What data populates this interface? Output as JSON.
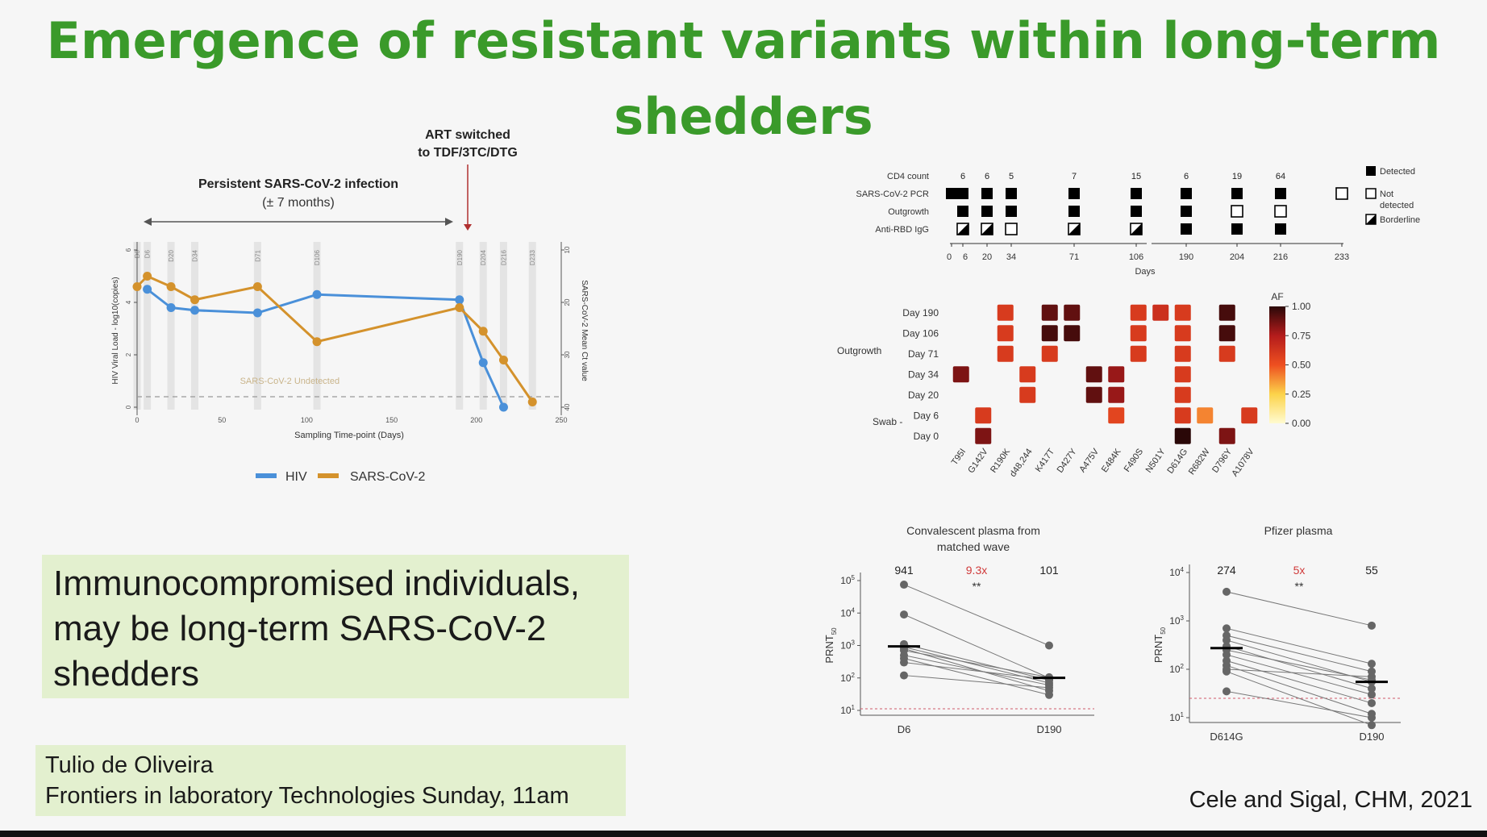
{
  "slide": {
    "title": "Emergence of resistant variants within long-term shedders",
    "title_lines": [
      "Emergence of resistant variants within long-term",
      "shedders"
    ],
    "main_box_lines": [
      "Immunocompromised individuals,",
      "may be long-term SARS-CoV-2",
      "shedders"
    ],
    "credit_lines": [
      "Tulio de Oliveira",
      "Frontiers in laboratory Technologies Sunday, 11am"
    ],
    "citation": "Cele and Sigal, CHM, 2021",
    "colors": {
      "title": "#3a9a2a",
      "box": "#e3f0cf"
    }
  },
  "chart_data": [
    {
      "type": "line",
      "annotations": {
        "persistent_title": "Persistent SARS-CoV-2 infection",
        "persistent_sub": "(± 7 months)",
        "art_line1": "ART switched",
        "art_line2": "to TDF/3TC/DTG",
        "undetected": "SARS-CoV-2 Undetected"
      },
      "xlabel": "Sampling Time-point (Days)",
      "ylabel_left": "HIV Viral Load - log10(copies)",
      "ylabel_right": "SARS-CoV-2 Mean Ct value",
      "xlim": [
        0,
        250
      ],
      "xticks": [
        0,
        50,
        100,
        150,
        200,
        250
      ],
      "ylim_left": [
        0,
        6
      ],
      "yticks_left": [
        0,
        2,
        4,
        6
      ],
      "ylim_right": [
        40,
        10
      ],
      "yticks_right": [
        10,
        20,
        30,
        40
      ],
      "sampling_days": [
        0,
        6,
        20,
        34,
        71,
        106,
        190,
        204,
        216,
        233
      ],
      "sampling_labels": [
        "D0",
        "D6",
        "D20",
        "D34",
        "D71",
        "D106",
        "D190",
        "D204",
        "D216",
        "D233"
      ],
      "legend": [
        "HIV",
        "SARS-CoV-2"
      ],
      "legend_position": "bottom",
      "series": [
        {
          "name": "HIV",
          "axis": "left",
          "color": "#4a90d9",
          "x": [
            6,
            20,
            34,
            71,
            106,
            190,
            204,
            216
          ],
          "y": [
            4.5,
            3.8,
            3.7,
            3.6,
            4.3,
            4.1,
            1.7,
            0.0
          ]
        },
        {
          "name": "SARS-CoV-2",
          "axis": "right",
          "color": "#d4922c",
          "x": [
            0,
            6,
            20,
            34,
            71,
            106,
            190,
            204,
            216,
            233
          ],
          "y": [
            17,
            15,
            17,
            19.5,
            17,
            27.5,
            21,
            25.5,
            31,
            39
          ]
        }
      ]
    },
    {
      "type": "table",
      "rows": [
        "CD4 count",
        "SARS-CoV-2 PCR",
        "Outgrowth",
        "Anti-RBD IgG"
      ],
      "days": [
        0,
        6,
        20,
        34,
        71,
        106,
        190,
        204,
        216,
        233
      ],
      "day_axis_labels": [
        "0",
        "6",
        "20",
        "34",
        "71",
        "106",
        "190",
        "204",
        "216",
        "233"
      ],
      "day_axis_title": "Days",
      "cd4_counts": [
        {
          "day": 6,
          "value": "6"
        },
        {
          "day": 20,
          "value": "6"
        },
        {
          "day": 34,
          "value": "5"
        },
        {
          "day": 71,
          "value": "7"
        },
        {
          "day": 106,
          "value": "15"
        },
        {
          "day": 190,
          "value": "6"
        },
        {
          "day": 204,
          "value": "19"
        },
        {
          "day": 216,
          "value": "64"
        }
      ],
      "pcr": [
        {
          "day": 0,
          "s": "D"
        },
        {
          "day": 6,
          "s": "D"
        },
        {
          "day": 20,
          "s": "D"
        },
        {
          "day": 34,
          "s": "D"
        },
        {
          "day": 71,
          "s": "D"
        },
        {
          "day": 106,
          "s": "D"
        },
        {
          "day": 190,
          "s": "D"
        },
        {
          "day": 204,
          "s": "D"
        },
        {
          "day": 216,
          "s": "D"
        },
        {
          "day": 233,
          "s": "N"
        }
      ],
      "outgrowth": [
        {
          "day": 6,
          "s": "D"
        },
        {
          "day": 20,
          "s": "D"
        },
        {
          "day": 34,
          "s": "D"
        },
        {
          "day": 71,
          "s": "D"
        },
        {
          "day": 106,
          "s": "D"
        },
        {
          "day": 190,
          "s": "D"
        },
        {
          "day": 204,
          "s": "N"
        },
        {
          "day": 216,
          "s": "N"
        }
      ],
      "igg": [
        {
          "day": 6,
          "s": "B"
        },
        {
          "day": 20,
          "s": "B"
        },
        {
          "day": 34,
          "s": "N"
        },
        {
          "day": 71,
          "s": "B"
        },
        {
          "day": 106,
          "s": "B"
        },
        {
          "day": 190,
          "s": "D"
        },
        {
          "day": 204,
          "s": "D"
        },
        {
          "day": 216,
          "s": "D"
        }
      ],
      "legend": [
        "Detected",
        "Not detected",
        "Borderline"
      ],
      "legend_lines": [
        [
          "Detected"
        ],
        [
          "Not",
          "detected"
        ],
        [
          "Borderline"
        ]
      ],
      "legend_position": "right"
    },
    {
      "type": "heatmap",
      "group_label_outgrowth": "Outgrowth",
      "group_label_swab": "Swab -",
      "rows": [
        "Day 190",
        "Day 106",
        "Day 71",
        "Day 34",
        "Day 20",
        "Day 6",
        "Day 0"
      ],
      "columns": [
        "T95I",
        "G142V",
        "R190K",
        "d48,244",
        "K417T",
        "D427Y",
        "A475V",
        "E484K",
        "F490S",
        "N501Y",
        "D614G",
        "R682W",
        "D796Y",
        "A1078V"
      ],
      "colorbar_title": "AF",
      "colorbar_ticks": [
        0.0,
        0.25,
        0.5,
        0.75,
        1.0
      ],
      "colorbar_tick_labels": [
        "0.00",
        "0.25",
        "0.50",
        "0.75",
        "1.00"
      ],
      "cells": [
        {
          "row": "Day 190",
          "col": "R190K",
          "af": 0.6
        },
        {
          "row": "Day 190",
          "col": "K417T",
          "af": 0.9
        },
        {
          "row": "Day 190",
          "col": "D427Y",
          "af": 0.9
        },
        {
          "row": "Day 190",
          "col": "F490S",
          "af": 0.6
        },
        {
          "row": "Day 190",
          "col": "N501Y",
          "af": 0.65
        },
        {
          "row": "Day 190",
          "col": "D614G",
          "af": 0.6
        },
        {
          "row": "Day 190",
          "col": "D796Y",
          "af": 0.95
        },
        {
          "row": "Day 106",
          "col": "R190K",
          "af": 0.6
        },
        {
          "row": "Day 106",
          "col": "K417T",
          "af": 0.95
        },
        {
          "row": "Day 106",
          "col": "D427Y",
          "af": 0.95
        },
        {
          "row": "Day 106",
          "col": "F490S",
          "af": 0.6
        },
        {
          "row": "Day 106",
          "col": "D614G",
          "af": 0.6
        },
        {
          "row": "Day 106",
          "col": "D796Y",
          "af": 0.95
        },
        {
          "row": "Day 71",
          "col": "R190K",
          "af": 0.6
        },
        {
          "row": "Day 71",
          "col": "K417T",
          "af": 0.6
        },
        {
          "row": "Day 71",
          "col": "F490S",
          "af": 0.6
        },
        {
          "row": "Day 71",
          "col": "D614G",
          "af": 0.6
        },
        {
          "row": "Day 71",
          "col": "D796Y",
          "af": 0.6
        },
        {
          "row": "Day 34",
          "col": "T95I",
          "af": 0.85
        },
        {
          "row": "Day 34",
          "col": "d48,244",
          "af": 0.6
        },
        {
          "row": "Day 34",
          "col": "A475V",
          "af": 0.9
        },
        {
          "row": "Day 34",
          "col": "E484K",
          "af": 0.8
        },
        {
          "row": "Day 34",
          "col": "D614G",
          "af": 0.6
        },
        {
          "row": "Day 20",
          "col": "d48,244",
          "af": 0.6
        },
        {
          "row": "Day 20",
          "col": "A475V",
          "af": 0.9
        },
        {
          "row": "Day 20",
          "col": "E484K",
          "af": 0.8
        },
        {
          "row": "Day 20",
          "col": "D614G",
          "af": 0.6
        },
        {
          "row": "Day 6",
          "col": "G142V",
          "af": 0.6
        },
        {
          "row": "Day 6",
          "col": "E484K",
          "af": 0.55
        },
        {
          "row": "Day 6",
          "col": "D614G",
          "af": 0.6
        },
        {
          "row": "Day 6",
          "col": "R682W",
          "af": 0.4
        },
        {
          "row": "Day 6",
          "col": "A1078V",
          "af": 0.6
        },
        {
          "row": "Day 0",
          "col": "G142V",
          "af": 0.85
        },
        {
          "row": "Day 0",
          "col": "D614G",
          "af": 1.0
        },
        {
          "row": "Day 0",
          "col": "D796Y",
          "af": 0.85
        }
      ]
    },
    {
      "type": "scatter",
      "title_lines": [
        "Convalescent plasma from",
        "matched wave"
      ],
      "title": "Convalescent plasma from matched wave",
      "ylabel_main": "PRNT",
      "ylabel_sub": "50",
      "yscale": "log",
      "ylim": [
        1,
        5
      ],
      "yticks": [
        1,
        2,
        3,
        4,
        5
      ],
      "threshold": 1.05,
      "categories": [
        "D6",
        "D190"
      ],
      "medians": [
        941,
        101
      ],
      "median_labels": [
        "941",
        "101"
      ],
      "fold_change": "9.3x",
      "significance": "**",
      "pairs": [
        [
          75000,
          1000
        ],
        [
          9000,
          100
        ],
        [
          1100,
          85
        ],
        [
          900,
          70
        ],
        [
          700,
          105
        ],
        [
          500,
          60
        ],
        [
          400,
          30
        ],
        [
          300,
          90
        ],
        [
          120,
          50
        ],
        [
          800,
          40
        ]
      ]
    },
    {
      "type": "scatter",
      "title": "Pfizer plasma",
      "ylabel_main": "PRNT",
      "ylabel_sub": "50",
      "yscale": "log",
      "ylim": [
        1,
        4
      ],
      "yticks": [
        1,
        2,
        3,
        4
      ],
      "threshold": 1.4,
      "categories": [
        "D614G",
        "D190"
      ],
      "medians": [
        274,
        55
      ],
      "median_labels": [
        "274",
        "55"
      ],
      "fold_change": "5x",
      "significance": "**",
      "pairs": [
        [
          4000,
          800
        ],
        [
          700,
          130
        ],
        [
          500,
          90
        ],
        [
          400,
          55
        ],
        [
          300,
          40
        ],
        [
          250,
          60
        ],
        [
          200,
          30
        ],
        [
          150,
          20
        ],
        [
          120,
          12
        ],
        [
          100,
          70
        ],
        [
          90,
          7
        ],
        [
          35,
          10
        ]
      ]
    }
  ]
}
